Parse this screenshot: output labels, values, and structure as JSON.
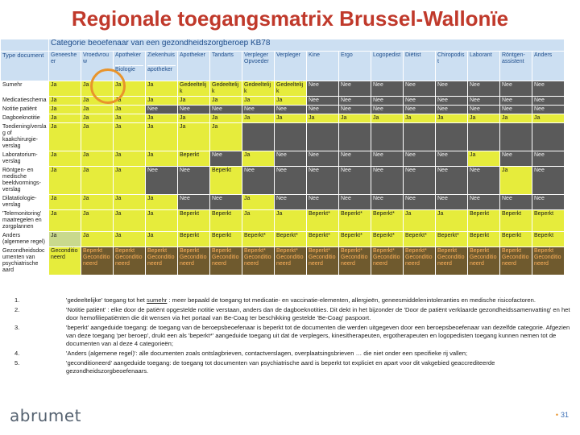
{
  "title": "Regionale toegangsmatrix Brussel-Wallonïe",
  "matrix": {
    "banner": "Categorie beoefenaar van een gezondheidszorgberoep KB78",
    "corner": "Type document",
    "columns": [
      {
        "label": "Geneesheer"
      },
      {
        "label": "Vroedvrouw"
      },
      {
        "label": "Apotheker",
        "sub": "Biologie"
      },
      {
        "label": "Ziekenhuis",
        "sub": "apotheker"
      },
      {
        "label": "Apotheker"
      },
      {
        "label": "Tandarts"
      },
      {
        "label": "Verpleger Opvoeder"
      },
      {
        "label": "Verpleger"
      },
      {
        "label": "Kine"
      },
      {
        "label": "Ergo"
      },
      {
        "label": "Logopedist"
      },
      {
        "label": "Diëtist"
      },
      {
        "label": "Chiropodist"
      },
      {
        "label": "Laborant"
      },
      {
        "label": "Röntgen-assistent"
      },
      {
        "label": "Anders"
      }
    ],
    "rows": [
      {
        "label": "Sumehr",
        "cells": [
          {
            "t": "Ja",
            "s": "y"
          },
          {
            "t": "Ja",
            "s": "y"
          },
          {
            "t": "Ja",
            "s": "y"
          },
          {
            "t": "Ja",
            "s": "y"
          },
          {
            "t": "Gedeeltelijk",
            "s": "y"
          },
          {
            "t": "Gedeeltelijk",
            "s": "y"
          },
          {
            "t": "Gedeeltelijk",
            "s": "y"
          },
          {
            "t": "Gedeeltelijk",
            "s": "y"
          },
          {
            "t": "Nee",
            "s": "d"
          },
          {
            "t": "Nee",
            "s": "d"
          },
          {
            "t": "Nee",
            "s": "d"
          },
          {
            "t": "Nee",
            "s": "d"
          },
          {
            "t": "Nee",
            "s": "d"
          },
          {
            "t": "Nee",
            "s": "d"
          },
          {
            "t": "Nee",
            "s": "d"
          },
          {
            "t": "Nee",
            "s": "d"
          }
        ]
      },
      {
        "label": "Medicatieschema",
        "cells": [
          {
            "t": "Ja",
            "s": "y"
          },
          {
            "t": "Ja",
            "s": "y"
          },
          {
            "t": "Ja",
            "s": "y"
          },
          {
            "t": "Ja",
            "s": "y"
          },
          {
            "t": "Ja",
            "s": "y"
          },
          {
            "t": "Ja",
            "s": "y"
          },
          {
            "t": "Ja",
            "s": "y"
          },
          {
            "t": "Ja",
            "s": "y"
          },
          {
            "t": "Nee",
            "s": "d"
          },
          {
            "t": "Nee",
            "s": "d"
          },
          {
            "t": "Nee",
            "s": "d"
          },
          {
            "t": "Nee",
            "s": "d"
          },
          {
            "t": "Nee",
            "s": "d"
          },
          {
            "t": "Nee",
            "s": "d"
          },
          {
            "t": "Nee",
            "s": "d"
          },
          {
            "t": "Nee",
            "s": "d"
          }
        ]
      },
      {
        "label": "Notitie patiënt",
        "cells": [
          {
            "t": "Ja",
            "s": "y"
          },
          {
            "t": "Ja",
            "s": "y"
          },
          {
            "t": "Ja",
            "s": "y"
          },
          {
            "t": "Nee",
            "s": "d"
          },
          {
            "t": "Nee",
            "s": "d"
          },
          {
            "t": "Nee",
            "s": "d"
          },
          {
            "t": "Nee",
            "s": "d"
          },
          {
            "t": "Nee",
            "s": "d"
          },
          {
            "t": "Nee",
            "s": "d"
          },
          {
            "t": "Nee",
            "s": "d"
          },
          {
            "t": "Nee",
            "s": "d"
          },
          {
            "t": "Nee",
            "s": "d"
          },
          {
            "t": "Nee",
            "s": "d"
          },
          {
            "t": "Nee",
            "s": "d"
          },
          {
            "t": "Nee",
            "s": "d"
          },
          {
            "t": "Nee",
            "s": "d"
          }
        ]
      },
      {
        "label": "Dagboeknotitie",
        "cells": [
          {
            "t": "Ja",
            "s": "y"
          },
          {
            "t": "Ja",
            "s": "y"
          },
          {
            "t": "Ja",
            "s": "y"
          },
          {
            "t": "Ja",
            "s": "y"
          },
          {
            "t": "Ja",
            "s": "y"
          },
          {
            "t": "Ja",
            "s": "y"
          },
          {
            "t": "Ja",
            "s": "y"
          },
          {
            "t": "Ja",
            "s": "y"
          },
          {
            "t": "Ja",
            "s": "y"
          },
          {
            "t": "Ja",
            "s": "y"
          },
          {
            "t": "Ja",
            "s": "y"
          },
          {
            "t": "Ja",
            "s": "y"
          },
          {
            "t": "Ja",
            "s": "y"
          },
          {
            "t": "Ja",
            "s": "y"
          },
          {
            "t": "Ja",
            "s": "y"
          },
          {
            "t": "Ja",
            "s": "y"
          }
        ]
      },
      {
        "label": "Toediening/verslag of kaakchirurgie-verslag",
        "cells": [
          {
            "t": "Ja",
            "s": "y"
          },
          {
            "t": "Ja",
            "s": "y"
          },
          {
            "t": "Ja",
            "s": "y"
          },
          {
            "t": "Ja",
            "s": "y"
          },
          {
            "t": "Ja",
            "s": "y"
          },
          {
            "t": "Ja",
            "s": "y"
          },
          {
            "t": "",
            "s": "d"
          },
          {
            "t": "",
            "s": "d"
          },
          {
            "t": "",
            "s": "d"
          },
          {
            "t": "",
            "s": "d"
          },
          {
            "t": "",
            "s": "d"
          },
          {
            "t": "",
            "s": "d"
          },
          {
            "t": "",
            "s": "d"
          },
          {
            "t": "",
            "s": "d"
          },
          {
            "t": "",
            "s": "d"
          },
          {
            "t": "",
            "s": "d"
          }
        ]
      },
      {
        "label": "Laboratorium-verslag",
        "cells": [
          {
            "t": "Ja",
            "s": "y"
          },
          {
            "t": "Ja",
            "s": "y"
          },
          {
            "t": "Ja",
            "s": "y"
          },
          {
            "t": "Ja",
            "s": "y"
          },
          {
            "t": "Beperkt",
            "s": "y"
          },
          {
            "t": "Nee",
            "s": "d"
          },
          {
            "t": "Ja",
            "s": "y"
          },
          {
            "t": "Nee",
            "s": "d"
          },
          {
            "t": "Nee",
            "s": "d"
          },
          {
            "t": "Nee",
            "s": "d"
          },
          {
            "t": "Nee",
            "s": "d"
          },
          {
            "t": "Nee",
            "s": "d"
          },
          {
            "t": "Nee",
            "s": "d"
          },
          {
            "t": "Ja",
            "s": "y"
          },
          {
            "t": "Nee",
            "s": "d"
          },
          {
            "t": "Nee",
            "s": "d"
          }
        ]
      },
      {
        "label": "Röntgen- en medische beeldvormings-verslag",
        "cells": [
          {
            "t": "Ja",
            "s": "y"
          },
          {
            "t": "Ja",
            "s": "y"
          },
          {
            "t": "Ja",
            "s": "y"
          },
          {
            "t": "Nee",
            "s": "d"
          },
          {
            "t": "Nee",
            "s": "d"
          },
          {
            "t": "Beperkt",
            "s": "y"
          },
          {
            "t": "Nee",
            "s": "d"
          },
          {
            "t": "Nee",
            "s": "d"
          },
          {
            "t": "Nee",
            "s": "d"
          },
          {
            "t": "Nee",
            "s": "d"
          },
          {
            "t": "Nee",
            "s": "d"
          },
          {
            "t": "Nee",
            "s": "d"
          },
          {
            "t": "Nee",
            "s": "d"
          },
          {
            "t": "Nee",
            "s": "d"
          },
          {
            "t": "Ja",
            "s": "y"
          },
          {
            "t": "Nee",
            "s": "d"
          }
        ]
      },
      {
        "label": "Dilatatiologie-verslag",
        "cells": [
          {
            "t": "Ja",
            "s": "y"
          },
          {
            "t": "Ja",
            "s": "y"
          },
          {
            "t": "Ja",
            "s": "y"
          },
          {
            "t": "Ja",
            "s": "y"
          },
          {
            "t": "Nee",
            "s": "d"
          },
          {
            "t": "Nee",
            "s": "d"
          },
          {
            "t": "Ja",
            "s": "y"
          },
          {
            "t": "Nee",
            "s": "d"
          },
          {
            "t": "Nee",
            "s": "d"
          },
          {
            "t": "Nee",
            "s": "d"
          },
          {
            "t": "Nee",
            "s": "d"
          },
          {
            "t": "Nee",
            "s": "d"
          },
          {
            "t": "Nee",
            "s": "d"
          },
          {
            "t": "Nee",
            "s": "d"
          },
          {
            "t": "Nee",
            "s": "d"
          },
          {
            "t": "Nee",
            "s": "d"
          }
        ]
      },
      {
        "label": "'Telemonitoring' maatregelen en zorgplannen",
        "cells": [
          {
            "t": "Ja",
            "s": "y"
          },
          {
            "t": "Ja",
            "s": "y"
          },
          {
            "t": "Ja",
            "s": "y"
          },
          {
            "t": "Ja",
            "s": "y"
          },
          {
            "t": "Beperkt",
            "s": "y"
          },
          {
            "t": "Beperkt",
            "s": "y"
          },
          {
            "t": "Ja",
            "s": "y"
          },
          {
            "t": "Ja",
            "s": "y"
          },
          {
            "t": "Beperkt*",
            "s": "y"
          },
          {
            "t": "Beperkt*",
            "s": "y"
          },
          {
            "t": "Beperkt*",
            "s": "y"
          },
          {
            "t": "Ja",
            "s": "y"
          },
          {
            "t": "Ja",
            "s": "y"
          },
          {
            "t": "Beperkt",
            "s": "y"
          },
          {
            "t": "Beperkt",
            "s": "y"
          },
          {
            "t": "Beperkt",
            "s": "y"
          }
        ]
      },
      {
        "label": "Anders (algemene regel)",
        "cells": [
          {
            "t": "Ja",
            "s": "g"
          },
          {
            "t": "Ja",
            "s": "y"
          },
          {
            "t": "Ja",
            "s": "y"
          },
          {
            "t": "Ja",
            "s": "y"
          },
          {
            "t": "Beperkt",
            "s": "y"
          },
          {
            "t": "Beperkt",
            "s": "y"
          },
          {
            "t": "Beperkt*",
            "s": "y"
          },
          {
            "t": "Beperkt*",
            "s": "y"
          },
          {
            "t": "Beperkt*",
            "s": "y"
          },
          {
            "t": "Beperkt*",
            "s": "y"
          },
          {
            "t": "Beperkt*",
            "s": "y"
          },
          {
            "t": "Beperkt*",
            "s": "y"
          },
          {
            "t": "Beperkt*",
            "s": "y"
          },
          {
            "t": "Beperkt",
            "s": "y"
          },
          {
            "t": "Beperkt",
            "s": "y"
          },
          {
            "t": "Beperkt",
            "s": "y"
          }
        ]
      },
      {
        "label": "Gezondheidsdocumenten van psychiatrische aard",
        "cells": [
          {
            "t": "Geconditioneerd",
            "s": "y"
          },
          {
            "t": "Beperkt Geconditio neerd",
            "s": "o"
          },
          {
            "t": "Beperkt Geconditio neerd",
            "s": "o"
          },
          {
            "t": "Beperkt Geconditio neerd",
            "s": "o"
          },
          {
            "t": "Beperkt Geconditio neerd",
            "s": "o"
          },
          {
            "t": "Beperkt Geconditio neerd",
            "s": "o"
          },
          {
            "t": "Beperkt* Geconditio neerd",
            "s": "o"
          },
          {
            "t": "Beperkt* Geconditio neerd",
            "s": "o"
          },
          {
            "t": "Beperkt* Geconditio neerd",
            "s": "o"
          },
          {
            "t": "Beperkt* Geconditio neerd",
            "s": "o"
          },
          {
            "t": "Beperkt* Geconditio neerd",
            "s": "o"
          },
          {
            "t": "Beperkt* Geconditio neerd",
            "s": "o"
          },
          {
            "t": "Beperkt Geconditio neerd",
            "s": "o"
          },
          {
            "t": "Beperkt Geconditio neerd",
            "s": "o"
          },
          {
            "t": "Beperkt Geconditio neerd",
            "s": "o"
          },
          {
            "t": "Beperkt Geconditio neerd",
            "s": "o"
          }
        ]
      }
    ]
  },
  "notes": [
    {
      "num": "1.",
      "pre": "'gedeeltelijke' toegang tot het ",
      "u": "sumehr",
      "post": " : meer bepaald de toegang tot medicatie- en vaccinatie-elementen, allergieën, geneesmiddelenintoleranties en medische risicofactoren."
    },
    {
      "num": "2.",
      "pre": "'Notitie patiënt' : elke door de patiënt opgestelde notitie verstaan, anders dan de dagboeknotities. Dit dekt in het bijzonder de 'Door de patiënt verklaarde gezondheidssamenvatting' en het door hemofiliepatiënten die dit wensen via het portaal van Be-Coag ter beschikking gestelde 'Be-Coag' paspoort.",
      "u": "",
      "post": ""
    },
    {
      "num": "3.",
      "pre": "'beperkt' aangeduide toegang: de toegang van de beroepsbeoefenaar is beperkt tot de documenten die werden uitgegeven door een beroepsbeoefenaar van dezelfde categorie. Afgezien van deze toegang 'per beroep', drukt een als 'beperkt*' aangeduide toegang uit dat de verplegers, kinesitherapeuten, ergotherapeuten en logopedisten toegang kunnen nemen tot de documenten van al deze 4 categorieën;",
      "u": "",
      "post": ""
    },
    {
      "num": "4.",
      "pre": "'Anders (algemene regel)': alle documenten zoals ontslagbrieven, contactverslagen, overplaatsingsbrieven … die niet onder een specifieke rij vallen;",
      "u": "",
      "post": ""
    },
    {
      "num": "5.",
      "pre": "'geconditioneerd' aangeduide toegang: de toegang tot documenten van psychiatrische aard is beperkt tot expliciet en apart voor dit vakgebied geaccrediteerde gezondheidszorgbeoefenaars.",
      "u": "",
      "post": ""
    }
  ],
  "footer": {
    "logo": "abrumet",
    "page": "31"
  }
}
